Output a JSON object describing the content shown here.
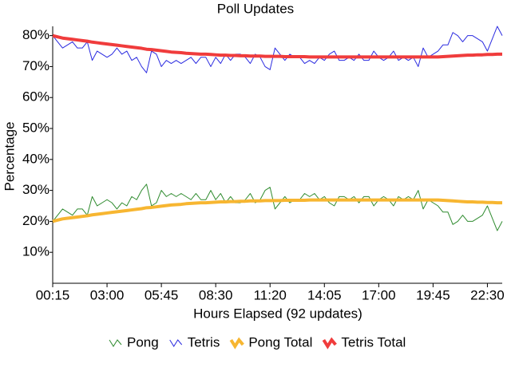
{
  "chart_data": {
    "type": "line",
    "title": "Poll Updates",
    "x_label": "Hours Elapsed (92 updates)",
    "y_label": "Percentage",
    "categories": [
      "00:15",
      null,
      null,
      null,
      null,
      null,
      null,
      null,
      null,
      null,
      null,
      "03:00",
      null,
      null,
      null,
      null,
      null,
      null,
      null,
      null,
      null,
      null,
      "05:45",
      null,
      null,
      null,
      null,
      null,
      null,
      null,
      null,
      null,
      null,
      "08:30",
      null,
      null,
      null,
      null,
      null,
      null,
      null,
      null,
      null,
      null,
      "11:20",
      null,
      null,
      null,
      null,
      null,
      null,
      null,
      null,
      null,
      null,
      "14:05",
      null,
      null,
      null,
      null,
      null,
      null,
      null,
      null,
      null,
      null,
      "17:00",
      null,
      null,
      null,
      null,
      null,
      null,
      null,
      null,
      null,
      null,
      "19:45",
      null,
      null,
      null,
      null,
      null,
      null,
      null,
      null,
      null,
      null,
      "22:30",
      null,
      null,
      null
    ],
    "ylim": [
      0,
      83
    ],
    "yticks": [
      {
        "value": 10,
        "label": "10%"
      },
      {
        "value": 20,
        "label": "20%"
      },
      {
        "value": 30,
        "label": "30%"
      },
      {
        "value": 40,
        "label": "40%"
      },
      {
        "value": 50,
        "label": "50%"
      },
      {
        "value": 60,
        "label": "60%"
      },
      {
        "value": 70,
        "label": "70%"
      },
      {
        "value": 80,
        "label": "80%"
      }
    ],
    "grid": false,
    "legend": "bottom",
    "series": [
      {
        "name": "Pong",
        "color": "#2e8b2e",
        "line_width": 1,
        "values": [
          20,
          22,
          24,
          23,
          22,
          24,
          24,
          22,
          28,
          25,
          26,
          27,
          26,
          24,
          26,
          25,
          28,
          27,
          30,
          32,
          25,
          26,
          30,
          28,
          29,
          28,
          29,
          28,
          27,
          29,
          27,
          27,
          30,
          27,
          29,
          26,
          28,
          26,
          26,
          27,
          29,
          26,
          27,
          30,
          31,
          24,
          26,
          28,
          26,
          27,
          27,
          29,
          28,
          29,
          27,
          28,
          26,
          25,
          28,
          28,
          27,
          28,
          26,
          28,
          28,
          25,
          27,
          28,
          27,
          25,
          28,
          27,
          28,
          27,
          30,
          24,
          27,
          26,
          25,
          23,
          23,
          19,
          20,
          22,
          20,
          20,
          21,
          22,
          25,
          21,
          17,
          20
        ]
      },
      {
        "name": "Tetris",
        "color": "#2a2ae0",
        "line_width": 1,
        "values": [
          80,
          78,
          76,
          77,
          78,
          76,
          76,
          78,
          72,
          75,
          74,
          73,
          74,
          76,
          74,
          75,
          72,
          73,
          70,
          68,
          75,
          74,
          70,
          72,
          71,
          72,
          71,
          72,
          73,
          71,
          73,
          73,
          70,
          73,
          71,
          74,
          72,
          74,
          74,
          73,
          71,
          74,
          73,
          70,
          69,
          76,
          74,
          72,
          74,
          73,
          73,
          71,
          72,
          71,
          73,
          72,
          74,
          75,
          72,
          72,
          73,
          72,
          74,
          72,
          72,
          75,
          73,
          72,
          73,
          75,
          72,
          73,
          72,
          73,
          70,
          76,
          73,
          74,
          75,
          77,
          77,
          81,
          80,
          78,
          80,
          80,
          79,
          78,
          75,
          79,
          83,
          80
        ]
      },
      {
        "name": "Pong Total",
        "color": "#f7b631",
        "line_width": 4,
        "values": [
          20,
          20.4,
          20.8,
          21,
          21.2,
          21.4,
          21.6,
          21.8,
          22.1,
          22.3,
          22.5,
          22.7,
          22.9,
          23.1,
          23.3,
          23.5,
          23.7,
          23.9,
          24.1,
          24.4,
          24.5,
          24.7,
          24.9,
          25.1,
          25.3,
          25.4,
          25.5,
          25.7,
          25.8,
          25.9,
          26,
          26,
          26.1,
          26.2,
          26.3,
          26.3,
          26.4,
          26.4,
          26.5,
          26.5,
          26.6,
          26.6,
          26.6,
          26.7,
          26.7,
          26.7,
          26.7,
          26.8,
          26.8,
          26.8,
          26.8,
          26.8,
          26.9,
          26.9,
          26.9,
          26.9,
          26.9,
          26.9,
          26.9,
          26.9,
          26.9,
          26.9,
          26.9,
          26.9,
          26.9,
          26.9,
          26.9,
          26.9,
          26.9,
          26.9,
          26.9,
          26.9,
          26.9,
          26.9,
          26.9,
          26.9,
          26.9,
          26.9,
          26.9,
          26.8,
          26.7,
          26.6,
          26.5,
          26.4,
          26.3,
          26.3,
          26.2,
          26.2,
          26.1,
          26.1,
          26,
          26
        ]
      },
      {
        "name": "Tetris Total",
        "color": "#f03c3c",
        "line_width": 4,
        "values": [
          80,
          79.6,
          79.2,
          79,
          78.8,
          78.6,
          78.4,
          78.2,
          77.9,
          77.7,
          77.5,
          77.3,
          77.1,
          76.9,
          76.7,
          76.5,
          76.3,
          76.1,
          75.9,
          75.6,
          75.5,
          75.3,
          75.1,
          74.9,
          74.7,
          74.6,
          74.5,
          74.3,
          74.2,
          74.1,
          74,
          74,
          73.9,
          73.8,
          73.7,
          73.7,
          73.6,
          73.6,
          73.5,
          73.5,
          73.4,
          73.4,
          73.4,
          73.3,
          73.3,
          73.3,
          73.3,
          73.2,
          73.2,
          73.2,
          73.2,
          73.2,
          73.1,
          73.1,
          73.1,
          73.1,
          73.1,
          73.1,
          73.1,
          73.1,
          73.1,
          73.1,
          73.1,
          73.1,
          73.1,
          73.1,
          73.1,
          73.1,
          73.1,
          73.1,
          73.1,
          73.1,
          73.1,
          73.1,
          73.1,
          73.1,
          73.1,
          73.1,
          73.1,
          73.2,
          73.3,
          73.4,
          73.5,
          73.6,
          73.7,
          73.7,
          73.8,
          73.8,
          73.9,
          73.9,
          74,
          74
        ]
      }
    ]
  }
}
